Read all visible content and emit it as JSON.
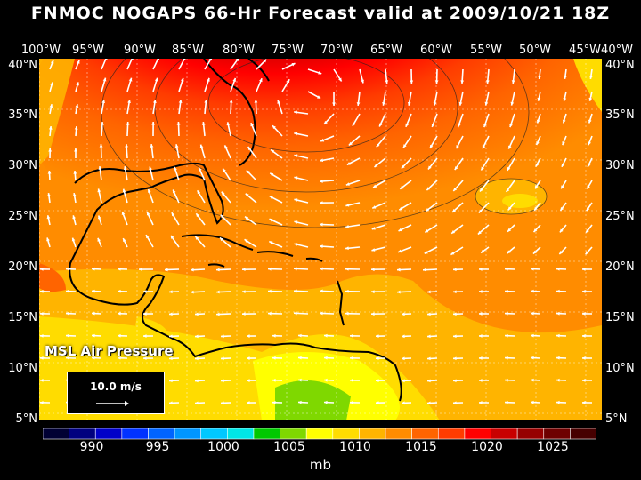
{
  "title": "FNMOC NOGAPS 66-Hr Forecast valid at 2009/10/21 18Z",
  "lon_labels": [
    "100°W",
    "95°W",
    "90°W",
    "85°W",
    "80°W",
    "75°W",
    "70°W",
    "65°W",
    "60°W",
    "55°W",
    "50°W",
    "45°W",
    "40°W"
  ],
  "lat_labels": [
    "40°N",
    "35°N",
    "30°N",
    "25°N",
    "20°N",
    "15°N",
    "10°N",
    "5°N"
  ],
  "field_label": "MSL Air Pressure",
  "wind_scale_label": "10.0 m/s",
  "colorbar": {
    "colors": [
      "#000033",
      "#00007f",
      "#0000c8",
      "#0032ff",
      "#0064ff",
      "#0096ff",
      "#00c8ff",
      "#00e6e6",
      "#00c800",
      "#7fd800",
      "#ffff00",
      "#ffdc00",
      "#ffb400",
      "#ff8c00",
      "#ff6400",
      "#ff3c00",
      "#ff0000",
      "#c80000",
      "#960000",
      "#6e0000",
      "#460000"
    ],
    "tick_labels": [
      "990",
      "995",
      "1000",
      "1005",
      "1010",
      "1015",
      "1020",
      "1025"
    ],
    "unit": "mb"
  }
}
